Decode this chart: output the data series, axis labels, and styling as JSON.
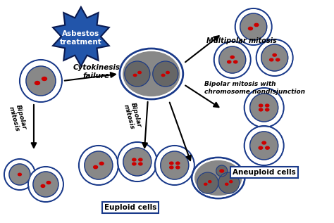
{
  "bg_color": "#ffffff",
  "cell_outer_color": "#1a3a8a",
  "cell_inner_color": "#888888",
  "nucleus_color": "#666666",
  "chromo_color": "#cc0000",
  "arrow_color": "#000000",
  "blast_color": "#2255aa",
  "blast_text": "Asbestos\ntreatment",
  "label_euploid": "Euploid cells",
  "label_aneuploid": "Aneuploid cells",
  "label_cytokinesis": "Cytokinesis\nfailure",
  "label_multipolar": "Multipolar mitosis",
  "label_bipolar_nondisjunction": "Bipolar mitosis with\nchromosome nondisjunction",
  "label_bipolar1": "Bipolar\nmitosis",
  "label_bipolar2": "Bipolar\nmitosis"
}
